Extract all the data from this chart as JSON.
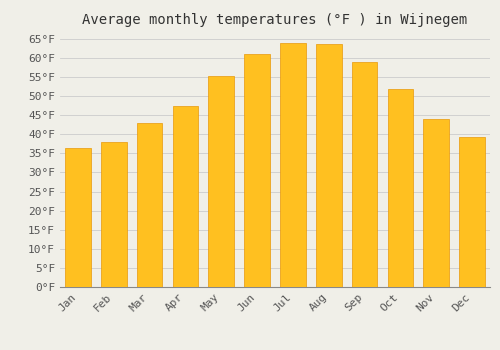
{
  "title": "Average monthly temperatures (°F ) in Wijnegem",
  "months": [
    "Jan",
    "Feb",
    "Mar",
    "Apr",
    "May",
    "Jun",
    "Jul",
    "Aug",
    "Sep",
    "Oct",
    "Nov",
    "Dec"
  ],
  "values": [
    36.3,
    37.9,
    43.0,
    47.5,
    55.2,
    61.0,
    63.9,
    63.7,
    59.0,
    51.8,
    44.1,
    39.2
  ],
  "bar_color_face": "#FFC020",
  "bar_color_edge": "#E8980A",
  "background_color": "#F0EFE8",
  "grid_color": "#CCCCCC",
  "ytick_min": 0,
  "ytick_max": 65,
  "ytick_step": 5,
  "title_fontsize": 10,
  "tick_fontsize": 8,
  "font_family": "monospace",
  "fig_width": 5.0,
  "fig_height": 3.5,
  "dpi": 100
}
